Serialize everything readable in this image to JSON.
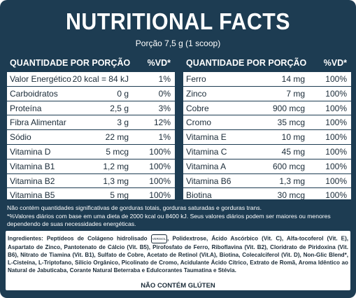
{
  "title": "NUTRITIONAL FACTS",
  "serving": "Porção 7,5 g (1 scoop)",
  "headers": {
    "quantity": "QUANTIDADE POR PORÇÃO",
    "vd": "%VD*"
  },
  "left_rows": [
    {
      "name": "Valor Energético",
      "amount": "20 kcal = 84 kJ",
      "vd": "1%"
    },
    {
      "name": "Carboidratos",
      "amount": "0 g",
      "vd": "0%"
    },
    {
      "name": "Proteína",
      "amount": "2,5 g",
      "vd": "3%"
    },
    {
      "name": "Fibra Alimentar",
      "amount": "3 g",
      "vd": "12%"
    },
    {
      "name": "Sódio",
      "amount": "22 mg",
      "vd": "1%"
    },
    {
      "name": "Vitamina D",
      "amount": "5 mcg",
      "vd": "100%"
    },
    {
      "name": "Vitamina B1",
      "amount": "1,2 mg",
      "vd": "100%"
    },
    {
      "name": "Vitamina B2",
      "amount": "1,3 mg",
      "vd": "100%"
    },
    {
      "name": "Vitamina B5",
      "amount": "5 mg",
      "vd": "100%"
    }
  ],
  "right_rows": [
    {
      "name": "Ferro",
      "amount": "14 mg",
      "vd": "100%"
    },
    {
      "name": "Zinco",
      "amount": "7 mg",
      "vd": "100%"
    },
    {
      "name": "Cobre",
      "amount": "900 mcg",
      "vd": "100%"
    },
    {
      "name": "Cromo",
      "amount": "35 mcg",
      "vd": "100%"
    },
    {
      "name": "Vitamina E",
      "amount": "10 mg",
      "vd": "100%"
    },
    {
      "name": "Vitamina C",
      "amount": "45 mg",
      "vd": "100%"
    },
    {
      "name": "Vitamina A",
      "amount": "600 mcg",
      "vd": "100%"
    },
    {
      "name": "Vitamina B6",
      "amount": "1,3 mg",
      "vd": "100%"
    },
    {
      "name": "Biotina",
      "amount": "30 mcg",
      "vd": "100%"
    }
  ],
  "footnote_1": "Não contém quantidades significativas de gorduras totais, gorduras saturadas e gorduras trans.",
  "footnote_2": "*%Valores diários com base em uma dieta de 2000 kcal ou 8400 kJ. Seus valores diários podem ser maiores ou menores dependendo de suas necessidades energéticas.",
  "ingredients_label": "Ingredientes:",
  "ingredients_part1": "Peptídeos de Colágeno hidrolisado",
  "trademark": "VERISOL",
  "ingredients_part2": ", Polidextrose, Ácido Ascórbico (Vit. C), Alfa-tocoferol (Vit. E), Aspartato de Zinco, Pantotenato de Cálcio (Vit. B5), Pirofosfato de Ferro, Riboflavina (Vit. B2), Cloridrato de Piridoxina (Vit. B6), Nitrato de Tiamina (Vit. B1), Sulfato de Cobre, Acetato de Retinol (Vit.A), Biotina, Colecalciferol (Vit. D), Non-Glic Blend*, L-Cisteína, L-Triptofano, Silício Orgânico, Picolinato de Cromo, Acidulante Ácido Cítrico, Extrato de Romã, Aroma Idêntico ao Natural de Jabuticaba, Corante Natural Beterraba e Edulcorantes Taumatina e Stévia.",
  "gluten": "NÃO CONTÉM GLÚTEN",
  "colors": {
    "panel": "#1d3c52",
    "table_bg": "#ffffff",
    "text_dark": "#1a2b38"
  }
}
